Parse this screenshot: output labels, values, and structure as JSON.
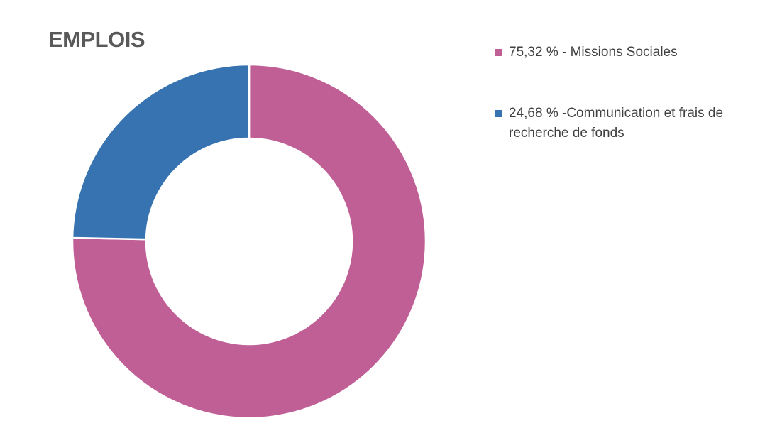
{
  "chart_data": {
    "type": "pie",
    "variant": "donut",
    "title": "EMPLOIS",
    "series": [
      {
        "name": "Missions Sociales",
        "value": 75.32,
        "label": "75,32 % - Missions Sociales",
        "color": "#C05F95"
      },
      {
        "name": "Communication et frais de recherche de fonds",
        "value": 24.68,
        "label": "24,68 % -Communication et frais de recherche de fonds",
        "color": "#3673B0"
      }
    ],
    "legend_position": "right",
    "start_angle": "top (12 o'clock), clockwise"
  }
}
